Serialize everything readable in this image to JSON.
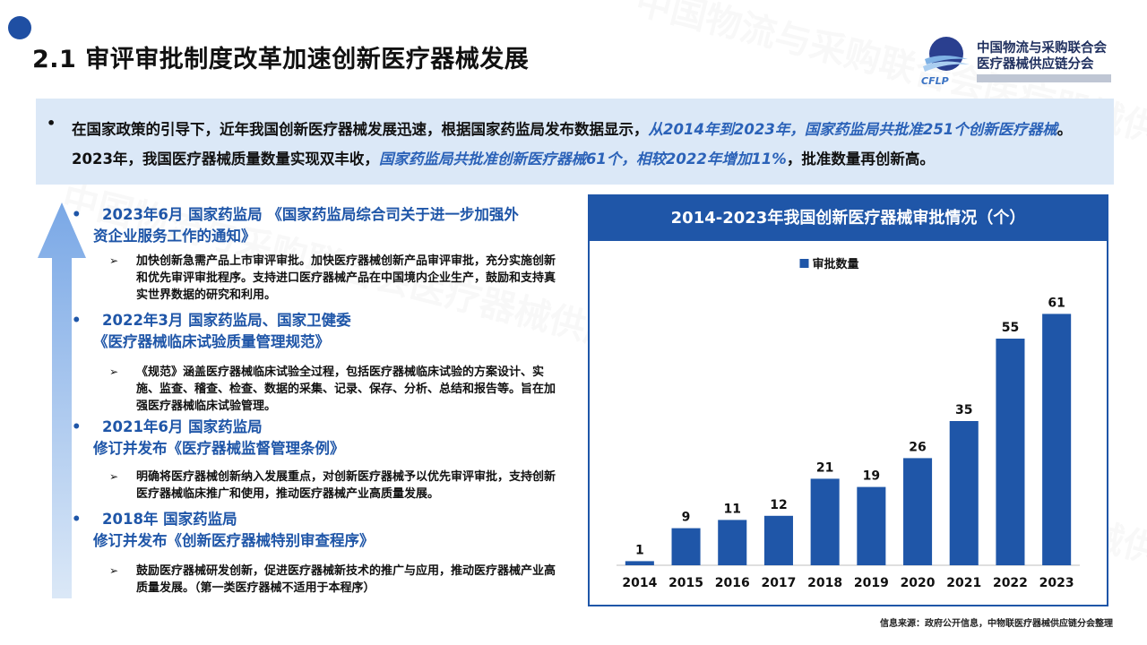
{
  "page": {
    "title": "2.1 审评审批制度改革加速创新医疗器械发展",
    "logo": {
      "line1": "中国物流与采购联合会",
      "line2": "医疗器械供应链分会",
      "abbr": "CFLP"
    },
    "watermark": "中国物流与采购联合会医疗器械供应链分会",
    "source": "信息来源：政府公开信息，中物联医疗器械供应链分会整理"
  },
  "intro": {
    "bullet": "•",
    "p1": "在国家政策的引导下，近年我国创新医疗器械发展迅速，根据国家药监局发布数据显示，",
    "h1": "从2014年到2023年，国家药监局共批准251个创新医疗器械",
    "p2": "。2023年，我国医疗器械质量数量实现双丰收，",
    "h2": "国家药监局共批准创新医疗器械61个，相较2022年增加11%",
    "p3": "，批准数量再创新高。"
  },
  "timeline": [
    {
      "bullet": "•",
      "head1": "2023年6月 国家药监局 《国家药监局综合司关于进一步加强外",
      "head2": "资企业服务工作的通知》",
      "chev": "➢",
      "body": "加快创新急需产品上市审评审批。加快医疗器械创新产品审评审批，充分实施创新和优先审评审批程序。支持进口医疗器械产品在中国境内企业生产，鼓励和支持真实世界数据的研究和利用。"
    },
    {
      "bullet": "•",
      "head1": "2022年3月 国家药监局、国家卫健委",
      "head2": "《医疗器械临床试验质量管理规范》",
      "chev": "➢",
      "body": "《规范》涵盖医疗器械临床试验全过程，包括医疗器械临床试验的方案设计、实施、监查、稽查、检查、数据的采集、记录、保存、分析、总结和报告等。旨在加强医疗器械临床试验管理。"
    },
    {
      "bullet": "•",
      "head1": "2021年6月 国家药监局",
      "head2": "修订并发布《医疗器械监督管理条例》",
      "chev": "➢",
      "body": "明确将医疗器械创新纳入发展重点，对创新医疗器械予以优先审评审批，支持创新医疗器械临床推广和使用，推动医疗器械产业高质量发展。"
    },
    {
      "bullet": "•",
      "head1": "2018年 国家药监局",
      "head2": "修订并发布《创新医疗器械特别审查程序》",
      "chev": "➢",
      "body": "鼓励医疗器械研发创新，促进医疗器械新技术的推广与应用，推动医疗器械产业高质量发展。（第一类医疗器械不适用于本程序）"
    }
  ],
  "chart_data": {
    "type": "bar",
    "title": "2014-2023年我国创新医疗器械审批情况（个）",
    "categories": [
      "2014",
      "2015",
      "2016",
      "2017",
      "2018",
      "2019",
      "2020",
      "2021",
      "2022",
      "2023"
    ],
    "series": [
      {
        "name": "审批数量",
        "values": [
          1,
          9,
          11,
          12,
          21,
          19,
          26,
          35,
          55,
          61
        ]
      }
    ],
    "ylim": [
      0,
      70
    ],
    "grid": false,
    "legend": "top-center",
    "color": "#1f56a8"
  }
}
